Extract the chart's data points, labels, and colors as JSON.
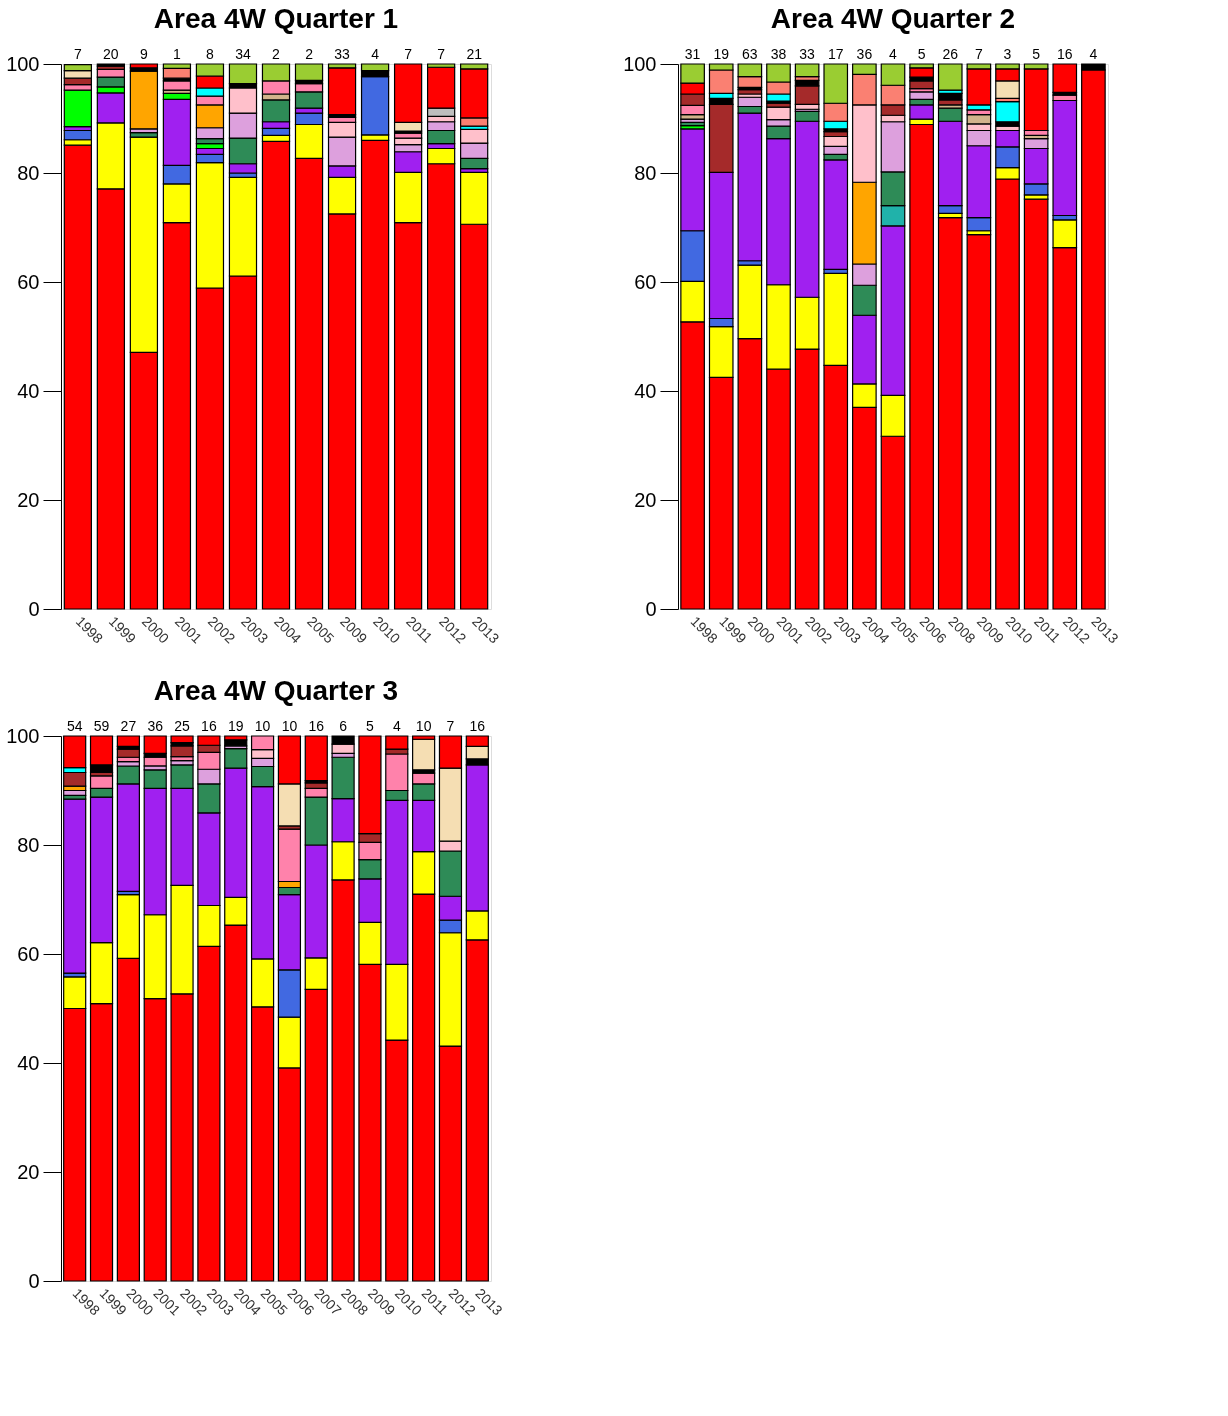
{
  "chart_data": [
    {
      "type": "bar",
      "stacked": true,
      "title": "Area 4W Quarter 1",
      "ylim": [
        0,
        100
      ],
      "yticks": [
        0,
        20,
        40,
        60,
        80,
        100
      ],
      "grid": false,
      "categories": [
        "1998",
        "1999",
        "2000",
        "2001",
        "2002",
        "2003",
        "2004",
        "2005",
        "2009",
        "2010",
        "2011",
        "2012",
        "2013"
      ],
      "series": [
        {
          "color": "#ff0000",
          "values": [
            85.1,
            77.1,
            47.1,
            70.9,
            58.9,
            61.1,
            85.8,
            82.7,
            72.5,
            86.0,
            70.9,
            81.7,
            70.6
          ]
        },
        {
          "color": "#ffff00",
          "values": [
            1.0,
            12.1,
            39.5,
            7.1,
            23.0,
            18.1,
            1.1,
            6.2,
            6.7,
            1.0,
            9.2,
            2.8,
            9.5
          ]
        },
        {
          "color": "#4169e1",
          "values": [
            1.7,
            null,
            null,
            3.4,
            1.5,
            0.8,
            1.3,
            2.1,
            null,
            10.7,
            null,
            null,
            null
          ]
        },
        {
          "color": "#a020f0",
          "values": [
            0.7,
            5.5,
            null,
            12.1,
            1.1,
            1.7,
            1.2,
            0.9,
            2.1,
            null,
            3.8,
            0.9,
            0.7
          ]
        },
        {
          "color": "#00ff00",
          "values": [
            6.7,
            1.1,
            null,
            1.1,
            0.9,
            null,
            null,
            null,
            null,
            null,
            null,
            null,
            null
          ]
        },
        {
          "color": "#2e8b57",
          "values": [
            null,
            1.8,
            0.8,
            null,
            0.9,
            4.7,
            4.0,
            3.0,
            null,
            null,
            null,
            2.4,
            1.9
          ]
        },
        {
          "color": "#dda0dd",
          "values": [
            null,
            null,
            0.7,
            null,
            2.0,
            4.6,
            null,
            null,
            5.3,
            null,
            1.3,
            1.6,
            2.8
          ]
        },
        {
          "color": "#ffa500",
          "values": [
            null,
            null,
            10.6,
            null,
            4.2,
            null,
            null,
            null,
            null,
            null,
            null,
            null,
            null
          ]
        },
        {
          "color": "#ffc0cb",
          "values": [
            null,
            null,
            null,
            null,
            null,
            4.6,
            null,
            null,
            2.7,
            null,
            1.2,
            1.0,
            2.5
          ]
        },
        {
          "color": "#d2b48c",
          "values": [
            null,
            null,
            null,
            0.6,
            null,
            null,
            1.1,
            null,
            null,
            null,
            null,
            null,
            null
          ]
        },
        {
          "color": "#ff82ab",
          "values": [
            1.0,
            1.4,
            null,
            1.7,
            1.6,
            null,
            2.4,
            1.5,
            0.9,
            null,
            0.9,
            null,
            null
          ]
        },
        {
          "color": "#a52a2a",
          "values": [
            1.2,
            0.6,
            null,
            null,
            null,
            null,
            null,
            null,
            null,
            null,
            null,
            null,
            null
          ]
        },
        {
          "color": "#000000",
          "values": [
            null,
            0.4,
            0.6,
            0.5,
            null,
            0.8,
            null,
            0.6,
            0.5,
            1.1,
            0.4,
            null,
            null
          ]
        },
        {
          "color": "#00ffff",
          "values": [
            null,
            null,
            null,
            null,
            1.5,
            null,
            null,
            null,
            null,
            null,
            null,
            null,
            0.6
          ]
        },
        {
          "color": "#fa8072",
          "values": [
            null,
            null,
            null,
            1.8,
            null,
            null,
            null,
            null,
            null,
            null,
            null,
            null,
            1.5
          ]
        },
        {
          "color": "#f5deb3",
          "values": [
            1.4,
            null,
            null,
            null,
            null,
            null,
            null,
            null,
            null,
            null,
            1.6,
            null,
            null
          ]
        },
        {
          "color": "#bebebe",
          "values": [
            null,
            null,
            null,
            null,
            null,
            null,
            null,
            null,
            null,
            null,
            null,
            1.5,
            null
          ]
        },
        {
          "color": "#ff0000",
          "values": [
            null,
            null,
            0.7,
            null,
            2.2,
            null,
            null,
            null,
            8.6,
            null,
            10.7,
            7.5,
            9.0
          ]
        },
        {
          "color": "#9acd32",
          "values": [
            1.1,
            null,
            null,
            0.8,
            2.2,
            3.6,
            3.1,
            3.0,
            0.7,
            1.2,
            null,
            0.6,
            0.9
          ]
        }
      ],
      "annotations": [
        {
          "text": "7",
          "x": "1998",
          "y": 100
        },
        {
          "text": "20",
          "x": "1999",
          "y": 100
        },
        {
          "text": "9",
          "x": "2000",
          "y": 100
        },
        {
          "text": "1",
          "x": "2001",
          "y": 100
        },
        {
          "text": "8",
          "x": "2002",
          "y": 100
        },
        {
          "text": "34",
          "x": "2003",
          "y": 100
        },
        {
          "text": "2",
          "x": "2004",
          "y": 100
        },
        {
          "text": "2",
          "x": "2005",
          "y": 100
        },
        {
          "text": "33",
          "x": "2009",
          "y": 100
        },
        {
          "text": "4",
          "x": "2010",
          "y": 100
        },
        {
          "text": "7",
          "x": "2011",
          "y": 100
        },
        {
          "text": "7",
          "x": "2012",
          "y": 100
        },
        {
          "text": "21",
          "x": "2013",
          "y": 100
        }
      ]
    },
    {
      "type": "bar",
      "stacked": true,
      "title": "Area 4W Quarter 2",
      "ylim": [
        0,
        100
      ],
      "yticks": [
        0,
        20,
        40,
        60,
        80,
        100
      ],
      "grid": false,
      "categories": [
        "1998",
        "1999",
        "2000",
        "2001",
        "2002",
        "2003",
        "2004",
        "2005",
        "2006",
        "2008",
        "2009",
        "2010",
        "2011",
        "2012",
        "2013"
      ],
      "series": [
        {
          "color": "#ff0000",
          "values": [
            52.7,
            42.5,
            49.6,
            44.0,
            47.7,
            44.7,
            37.0,
            31.7,
            88.9,
            71.8,
            68.7,
            78.9,
            75.2,
            66.3,
            98.9
          ]
        },
        {
          "color": "#ffff00",
          "values": [
            7.4,
            9.3,
            13.5,
            15.5,
            9.5,
            16.9,
            4.3,
            7.5,
            1.0,
            0.8,
            0.7,
            2.1,
            0.8,
            5.1,
            null
          ]
        },
        {
          "color": "#4169e1",
          "values": [
            9.3,
            1.5,
            0.8,
            null,
            null,
            0.7,
            null,
            null,
            null,
            1.4,
            2.4,
            3.8,
            2.0,
            0.8,
            null
          ]
        },
        {
          "color": "#a020f0",
          "values": [
            18.7,
            26.8,
            27.1,
            26.8,
            32.3,
            20.1,
            12.6,
            31.1,
            2.6,
            15.5,
            13.2,
            3.0,
            6.5,
            21.1,
            null
          ]
        },
        {
          "color": "#00ff00",
          "values": [
            0.6,
            null,
            null,
            null,
            null,
            null,
            null,
            null,
            null,
            null,
            null,
            null,
            null,
            null,
            null
          ]
        },
        {
          "color": "#20b2aa",
          "values": [
            null,
            null,
            null,
            null,
            null,
            null,
            null,
            3.7,
            null,
            null,
            null,
            null,
            null,
            null,
            null
          ]
        },
        {
          "color": "#2e8b57",
          "values": [
            0.6,
            null,
            1.2,
            2.3,
            1.8,
            1.0,
            5.5,
            6.2,
            1.0,
            2.4,
            null,
            null,
            null,
            null,
            null
          ]
        },
        {
          "color": "#dda0dd",
          "values": [
            0.6,
            null,
            1.7,
            1.2,
            0.4,
            1.5,
            3.9,
            9.2,
            1.4,
            null,
            2.8,
            null,
            1.8,
            null,
            null
          ]
        },
        {
          "color": "#ffa500",
          "values": [
            null,
            null,
            null,
            null,
            null,
            null,
            15.0,
            null,
            null,
            null,
            null,
            null,
            null,
            null,
            null
          ]
        },
        {
          "color": "#ffc0cb",
          "values": [
            null,
            null,
            0.6,
            2.3,
            0.9,
            1.8,
            14.2,
            1.2,
            null,
            null,
            1.2,
            0.8,
            null,
            null,
            null
          ]
        },
        {
          "color": "#d2b48c",
          "values": [
            0.8,
            null,
            null,
            null,
            null,
            null,
            null,
            null,
            null,
            0.6,
            1.7,
            null,
            0.6,
            null,
            null
          ]
        },
        {
          "color": "#ff82ab",
          "values": [
            1.7,
            null,
            null,
            null,
            null,
            null,
            null,
            null,
            0.6,
            null,
            0.9,
            null,
            0.9,
            1.0,
            null
          ]
        },
        {
          "color": "#a52a2a",
          "values": [
            2.1,
            12.5,
            0.8,
            0.7,
            3.4,
            0.9,
            null,
            1.9,
            1.4,
            0.9,
            null,
            null,
            null,
            null,
            null
          ]
        },
        {
          "color": "#000000",
          "values": [
            null,
            1.1,
            0.4,
            0.4,
            1.0,
            0.5,
            null,
            null,
            0.7,
            1.2,
            null,
            0.8,
            null,
            0.5,
            1.1
          ]
        },
        {
          "color": "#00ffff",
          "values": [
            null,
            0.9,
            null,
            1.3,
            null,
            1.4,
            null,
            null,
            null,
            0.6,
            0.9,
            3.7,
            null,
            null,
            null
          ]
        },
        {
          "color": "#fa8072",
          "values": [
            null,
            4.3,
            2.0,
            2.2,
            0.7,
            3.3,
            5.6,
            3.6,
            null,
            null,
            null,
            0.6,
            null,
            null,
            null
          ]
        },
        {
          "color": "#f5deb3",
          "values": [
            null,
            null,
            null,
            null,
            null,
            null,
            null,
            null,
            null,
            null,
            null,
            3.2,
            null,
            null,
            null
          ]
        },
        {
          "color": "#ff0000",
          "values": [
            2.0,
            null,
            null,
            null,
            null,
            null,
            null,
            null,
            1.7,
            null,
            6.6,
            2.2,
            11.3,
            5.2,
            null
          ]
        },
        {
          "color": "#9acd32",
          "values": [
            3.5,
            1.1,
            2.3,
            3.3,
            2.3,
            7.2,
            1.9,
            3.9,
            0.7,
            4.8,
            0.9,
            0.9,
            0.9,
            null,
            null
          ]
        }
      ],
      "annotations": [
        {
          "text": "31",
          "x": "1998",
          "y": 100
        },
        {
          "text": "19",
          "x": "1999",
          "y": 100
        },
        {
          "text": "63",
          "x": "2000",
          "y": 100
        },
        {
          "text": "38",
          "x": "2001",
          "y": 100
        },
        {
          "text": "33",
          "x": "2002",
          "y": 100
        },
        {
          "text": "17",
          "x": "2003",
          "y": 100
        },
        {
          "text": "36",
          "x": "2004",
          "y": 100
        },
        {
          "text": "4",
          "x": "2005",
          "y": 100
        },
        {
          "text": "5",
          "x": "2006",
          "y": 100
        },
        {
          "text": "26",
          "x": "2008",
          "y": 100
        },
        {
          "text": "7",
          "x": "2009",
          "y": 100
        },
        {
          "text": "3",
          "x": "2010",
          "y": 100
        },
        {
          "text": "5",
          "x": "2011",
          "y": 100
        },
        {
          "text": "16",
          "x": "2012",
          "y": 100
        },
        {
          "text": "4",
          "x": "2013",
          "y": 100
        }
      ]
    },
    {
      "type": "bar",
      "stacked": true,
      "title": "Area 4W Quarter 3",
      "ylim": [
        0,
        100
      ],
      "yticks": [
        0,
        20,
        40,
        60,
        80,
        100
      ],
      "grid": false,
      "categories": [
        "1998",
        "1999",
        "2000",
        "2001",
        "2002",
        "2003",
        "2004",
        "2005",
        "2006",
        "2007",
        "2008",
        "2009",
        "2010",
        "2011",
        "2012",
        "2013"
      ],
      "series": [
        {
          "color": "#ff0000",
          "values": [
            50.0,
            50.9,
            59.2,
            51.8,
            52.7,
            61.4,
            65.3,
            50.3,
            39.1,
            53.5,
            73.6,
            58.1,
            44.2,
            71.0,
            43.1,
            62.6
          ]
        },
        {
          "color": "#ffff00",
          "values": [
            5.8,
            11.2,
            11.7,
            15.4,
            19.9,
            7.5,
            5.1,
            8.8,
            9.3,
            5.8,
            7.0,
            7.7,
            13.9,
            7.8,
            20.8,
            5.3
          ]
        },
        {
          "color": "#4169e1",
          "values": [
            0.7,
            null,
            0.6,
            null,
            null,
            null,
            null,
            null,
            8.7,
            null,
            null,
            null,
            null,
            null,
            2.3,
            null
          ]
        },
        {
          "color": "#a020f0",
          "values": [
            31.9,
            26.7,
            19.7,
            23.2,
            17.8,
            17.0,
            23.7,
            31.6,
            13.8,
            20.7,
            7.9,
            8.0,
            30.1,
            9.4,
            4.4,
            26.8
          ]
        },
        {
          "color": "#2e8b57",
          "values": [
            0.7,
            1.6,
            3.3,
            3.4,
            4.3,
            5.3,
            3.6,
            3.7,
            1.3,
            8.8,
            7.6,
            3.5,
            1.8,
            3.0,
            8.3,
            null
          ]
        },
        {
          "color": "#dda0dd",
          "values": [
            0.9,
            null,
            0.8,
            0.7,
            0.8,
            2.7,
            0.5,
            1.5,
            null,
            null,
            0.7,
            null,
            null,
            null,
            null,
            null
          ]
        },
        {
          "color": "#ffa500",
          "values": [
            0.8,
            null,
            null,
            null,
            null,
            null,
            null,
            null,
            1.1,
            null,
            null,
            null,
            null,
            null,
            null,
            null
          ]
        },
        {
          "color": "#ffc0cb",
          "values": [
            null,
            null,
            null,
            null,
            null,
            null,
            null,
            1.6,
            null,
            null,
            1.7,
            null,
            null,
            null,
            1.8,
            null
          ]
        },
        {
          "color": "#ff82ab",
          "values": [
            null,
            2.3,
            0.8,
            1.6,
            0.7,
            3.1,
            null,
            2.5,
            9.6,
            1.6,
            null,
            3.2,
            6.7,
            2.0,
            null,
            null
          ]
        },
        {
          "color": "#a52a2a",
          "values": [
            2.5,
            0.6,
            1.5,
            null,
            2.0,
            1.3,
            null,
            null,
            0.6,
            1.0,
            null,
            1.6,
            0.9,
            null,
            null,
            null
          ]
        },
        {
          "color": "#000000",
          "values": [
            null,
            1.4,
            0.5,
            0.7,
            0.6,
            null,
            1.1,
            null,
            null,
            0.4,
            1.5,
            null,
            null,
            0.6,
            null,
            1.1
          ]
        },
        {
          "color": "#00ffff",
          "values": [
            0.9,
            null,
            null,
            null,
            null,
            null,
            null,
            null,
            null,
            null,
            null,
            null,
            null,
            null,
            null,
            null
          ]
        },
        {
          "color": "#f5deb3",
          "values": [
            null,
            null,
            null,
            null,
            null,
            null,
            null,
            null,
            7.7,
            null,
            null,
            null,
            null,
            5.6,
            13.4,
            2.3
          ]
        },
        {
          "color": "#ff0000",
          "values": [
            5.8,
            5.3,
            1.9,
            3.2,
            1.2,
            1.7,
            0.7,
            null,
            8.8,
            8.2,
            null,
            17.9,
            2.4,
            0.6,
            5.9,
            1.9
          ]
        }
      ],
      "annotations": [
        {
          "text": "54",
          "x": "1998",
          "y": 100
        },
        {
          "text": "59",
          "x": "1999",
          "y": 100
        },
        {
          "text": "27",
          "x": "2000",
          "y": 100
        },
        {
          "text": "36",
          "x": "2001",
          "y": 100
        },
        {
          "text": "25",
          "x": "2002",
          "y": 100
        },
        {
          "text": "16",
          "x": "2003",
          "y": 100
        },
        {
          "text": "19",
          "x": "2004",
          "y": 100
        },
        {
          "text": "10",
          "x": "2005",
          "y": 100
        },
        {
          "text": "10",
          "x": "2006",
          "y": 100
        },
        {
          "text": "16",
          "x": "2007",
          "y": 100
        },
        {
          "text": "6",
          "x": "2008",
          "y": 100
        },
        {
          "text": "5",
          "x": "2009",
          "y": 100
        },
        {
          "text": "4",
          "x": "2010",
          "y": 100
        },
        {
          "text": "10",
          "x": "2011",
          "y": 100
        },
        {
          "text": "7",
          "x": "2012",
          "y": 100
        },
        {
          "text": "16",
          "x": "2013",
          "y": 100
        }
      ]
    }
  ]
}
